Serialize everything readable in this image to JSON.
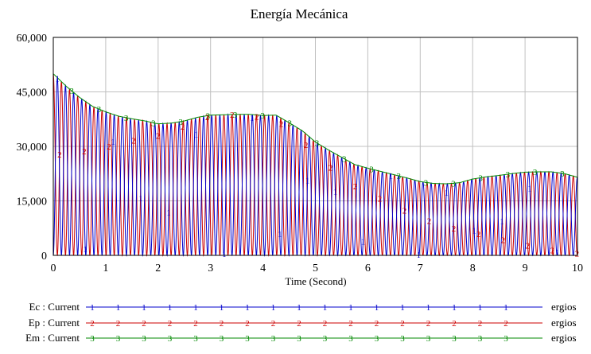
{
  "chart_data": {
    "type": "line",
    "title": "Energía Mecánica",
    "xlabel": "Time (Second)",
    "ylabel": "",
    "xlim": [
      0,
      10
    ],
    "ylim": [
      0,
      60000
    ],
    "x_ticks": [
      0,
      1,
      2,
      3,
      4,
      5,
      6,
      7,
      8,
      9,
      10
    ],
    "x_tick_labels": [
      "0",
      "1",
      "2",
      "3",
      "4",
      "5",
      "6",
      "7",
      "8",
      "9",
      "10"
    ],
    "y_ticks": [
      0,
      15000,
      30000,
      45000,
      60000
    ],
    "y_tick_labels": [
      "0",
      "15,000",
      "30,000",
      "45,000",
      "60,000"
    ],
    "grid": true,
    "legend_placement": "bottom",
    "series": [
      {
        "name": "Ec : Current",
        "unit": "ergios",
        "marker": "1",
        "color": "#0000cc",
        "description": "kinetic energy, oscillates between 0 and Em"
      },
      {
        "name": "Ep : Current",
        "unit": "ergios",
        "marker": "2",
        "color": "#cc0000",
        "description": "potential energy, oscillates between 0 and Em, out of phase with Ec"
      },
      {
        "name": "Em : Current",
        "unit": "ergios",
        "marker": "3",
        "color": "#008800",
        "x": [
          0,
          0.25,
          0.5,
          0.75,
          1.0,
          1.25,
          1.5,
          1.75,
          2.0,
          2.25,
          2.5,
          2.75,
          3.0,
          3.25,
          3.5,
          3.75,
          4.0,
          4.25,
          4.5,
          4.75,
          5.0,
          5.25,
          5.5,
          5.75,
          6.0,
          6.25,
          6.5,
          6.75,
          7.0,
          7.25,
          7.5,
          7.75,
          8.0,
          8.25,
          8.5,
          8.75,
          9.0,
          9.25,
          9.5,
          9.75,
          10.0
        ],
        "values": [
          50000,
          46500,
          43500,
          41000,
          39500,
          38300,
          37600,
          37000,
          36200,
          36400,
          37000,
          38000,
          38600,
          38700,
          38800,
          38800,
          38500,
          38600,
          36500,
          34300,
          31200,
          29000,
          27000,
          25000,
          24000,
          23100,
          22200,
          21300,
          20300,
          19800,
          19700,
          20000,
          21000,
          21600,
          22000,
          22500,
          22900,
          23000,
          23000,
          22500,
          21500
        ]
      }
    ],
    "oscillation_period_s": 0.31
  }
}
